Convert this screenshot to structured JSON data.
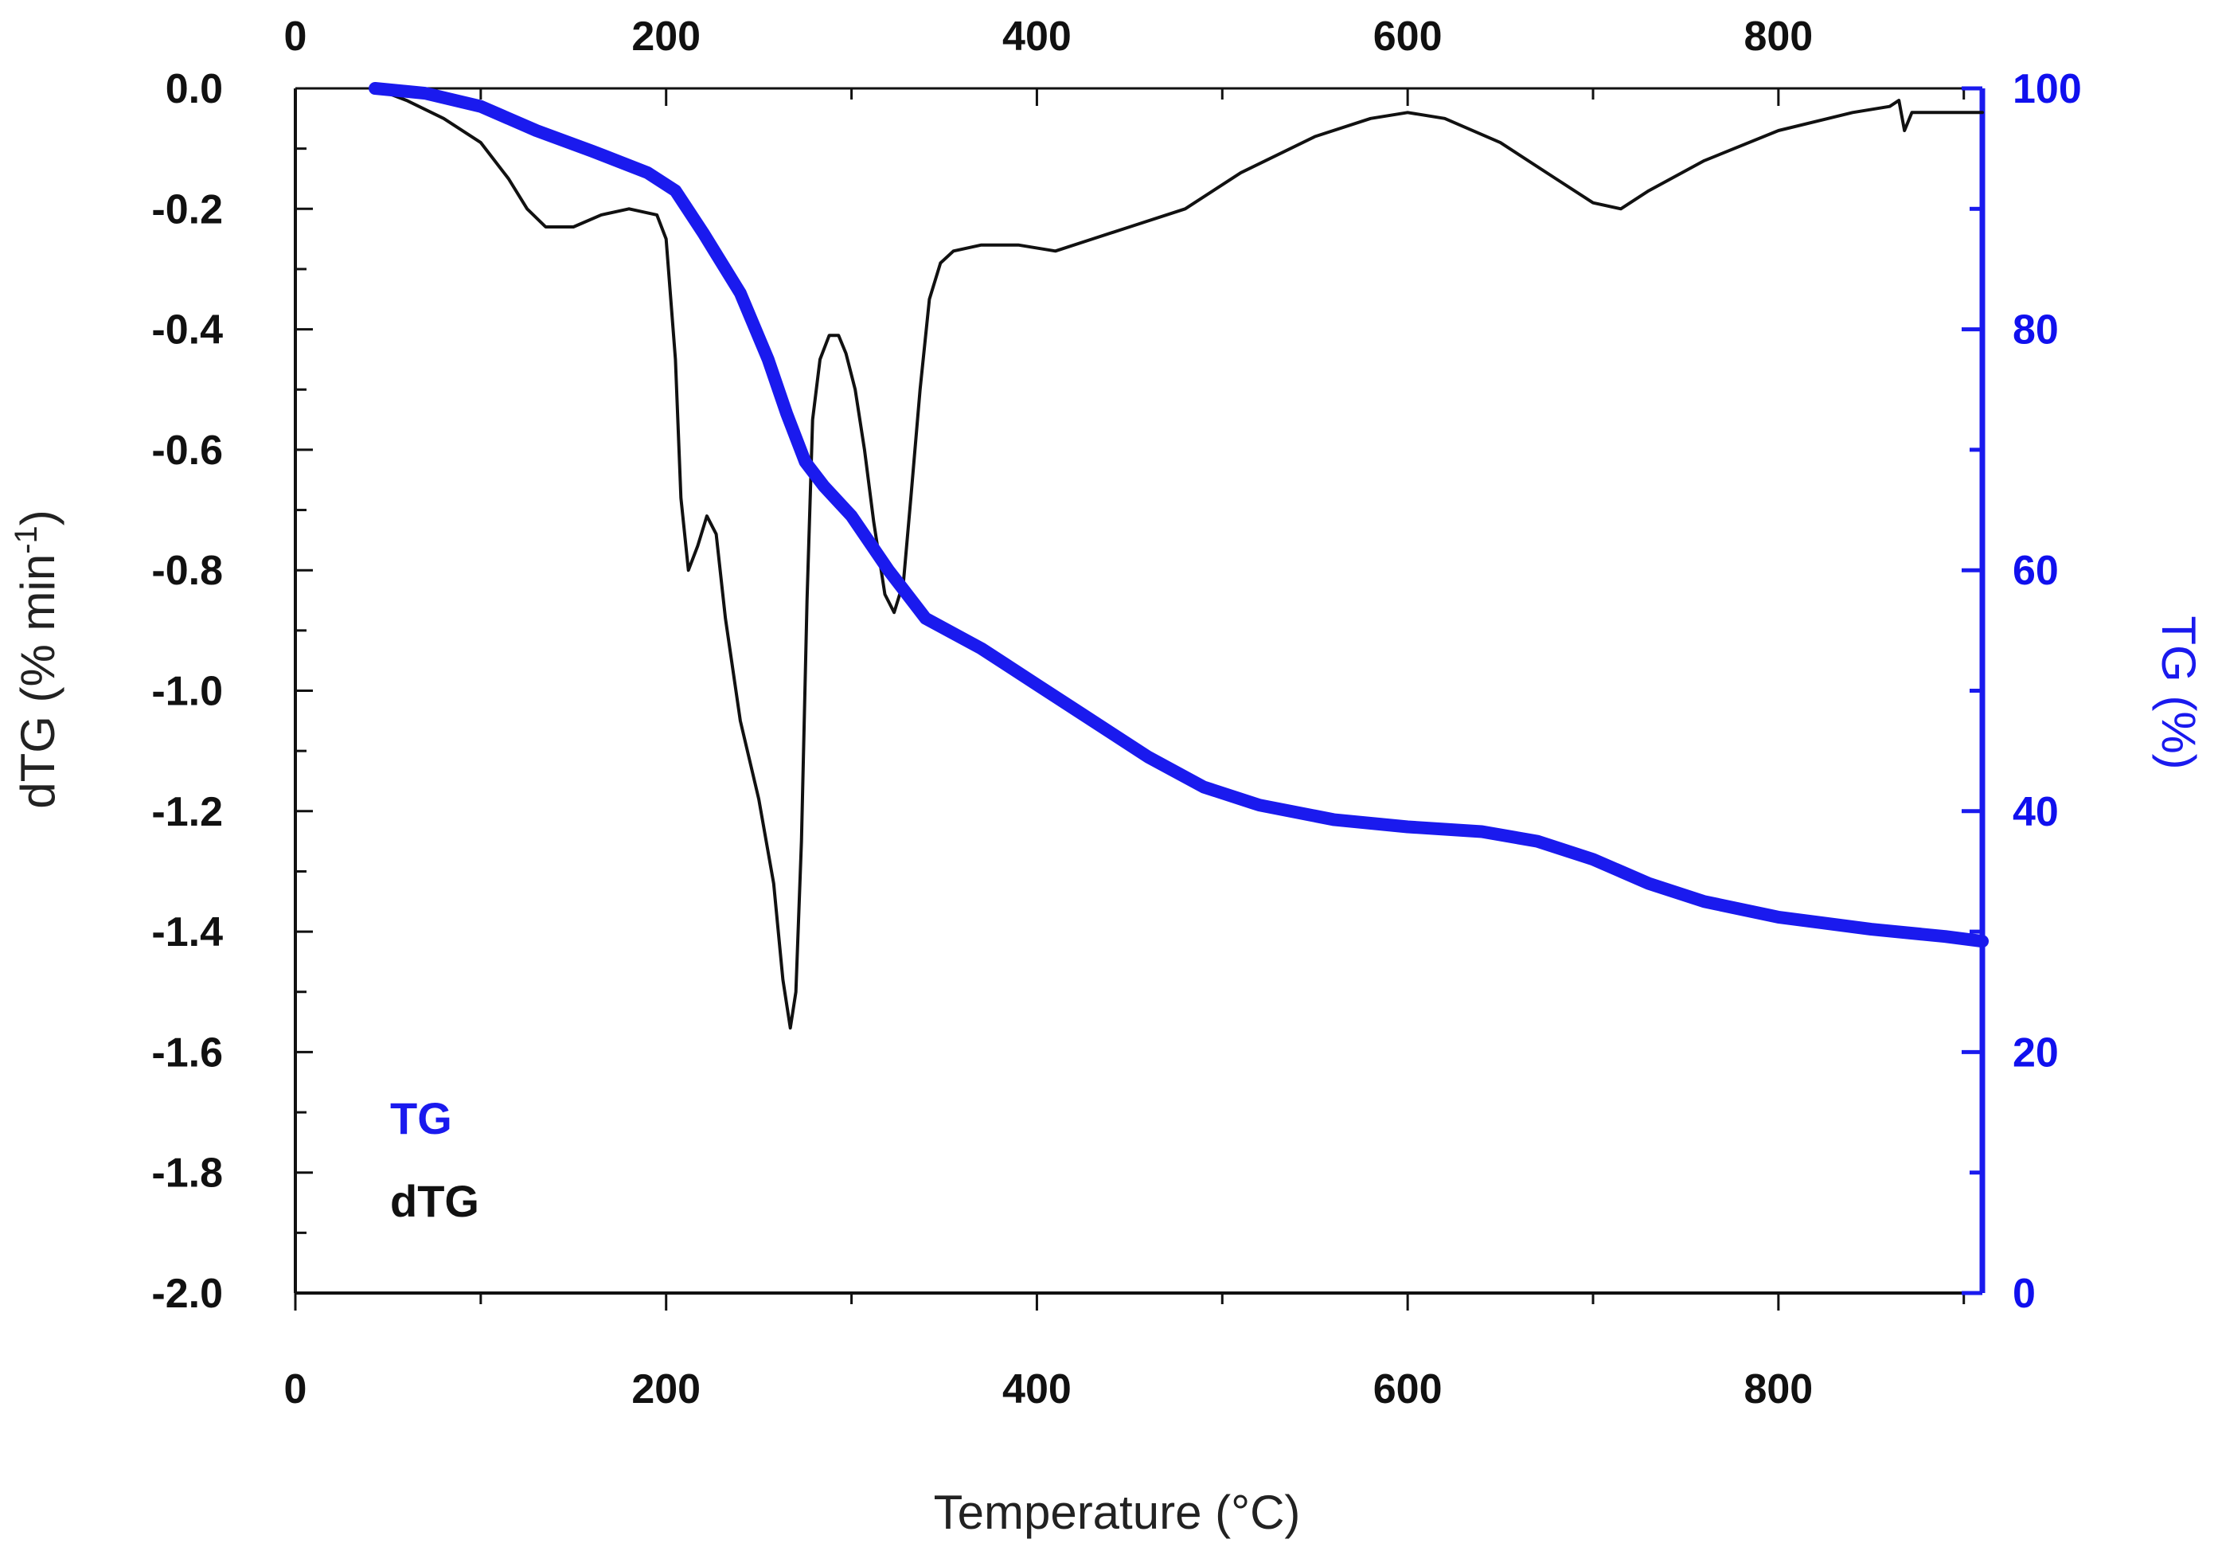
{
  "chart_data": {
    "type": "line",
    "xlabel": "Temperature (°C)",
    "ylabel_left_prefix": "dTG (% min",
    "ylabel_left_sup": "-1",
    "ylabel_left_suffix": ")",
    "ylabel_right": "TG (%)",
    "xlim": [
      0,
      910
    ],
    "ylim_left": [
      -2.0,
      0.0
    ],
    "ylim_right": [
      0,
      100
    ],
    "x_ticks": [
      {
        "value": 0,
        "label": "0"
      },
      {
        "value": 200,
        "label": "200"
      },
      {
        "value": 400,
        "label": "400"
      },
      {
        "value": 600,
        "label": "600"
      },
      {
        "value": 800,
        "label": "800"
      }
    ],
    "y_left_ticks": [
      {
        "value": 0.0,
        "label": "0.0"
      },
      {
        "value": -0.2,
        "label": "-0.2"
      },
      {
        "value": -0.4,
        "label": "-0.4"
      },
      {
        "value": -0.6,
        "label": "-0.6"
      },
      {
        "value": -0.8,
        "label": "-0.8"
      },
      {
        "value": -1.0,
        "label": "-1.0"
      },
      {
        "value": -1.2,
        "label": "-1.2"
      },
      {
        "value": -1.4,
        "label": "-1.4"
      },
      {
        "value": -1.6,
        "label": "-1.6"
      },
      {
        "value": -1.8,
        "label": "-1.8"
      },
      {
        "value": -2.0,
        "label": "-2.0"
      }
    ],
    "y_right_ticks": [
      {
        "value": 0,
        "label": "0"
      },
      {
        "value": 20,
        "label": "20"
      },
      {
        "value": 40,
        "label": "40"
      },
      {
        "value": 60,
        "label": "60"
      },
      {
        "value": 80,
        "label": "80"
      },
      {
        "value": 100,
        "label": "100"
      }
    ],
    "legend": [
      {
        "name": "TG",
        "color": "#1a1aee"
      },
      {
        "name": "dTG",
        "color": "#111111"
      }
    ],
    "series": [
      {
        "name": "dTG",
        "axis": "left",
        "color": "#111111",
        "x": [
          43,
          60,
          80,
          100,
          115,
          125,
          135,
          150,
          165,
          180,
          195,
          200,
          205,
          208,
          212,
          217,
          222,
          227,
          232,
          240,
          250,
          258,
          263,
          267,
          270,
          273,
          276,
          279,
          283,
          288,
          293,
          297,
          302,
          307,
          312,
          318,
          323,
          328,
          332,
          337,
          342,
          348,
          355,
          370,
          390,
          410,
          430,
          450,
          480,
          510,
          550,
          580,
          600,
          620,
          650,
          680,
          700,
          715,
          730,
          760,
          800,
          840,
          860,
          865,
          868,
          872,
          880,
          910
        ],
        "y": [
          0.0,
          -0.02,
          -0.05,
          -0.09,
          -0.15,
          -0.2,
          -0.23,
          -0.23,
          -0.21,
          -0.2,
          -0.21,
          -0.25,
          -0.45,
          -0.68,
          -0.8,
          -0.76,
          -0.71,
          -0.74,
          -0.88,
          -1.05,
          -1.18,
          -1.32,
          -1.48,
          -1.56,
          -1.5,
          -1.25,
          -0.85,
          -0.55,
          -0.45,
          -0.41,
          -0.41,
          -0.44,
          -0.5,
          -0.6,
          -0.72,
          -0.84,
          -0.87,
          -0.82,
          -0.68,
          -0.5,
          -0.35,
          -0.29,
          -0.27,
          -0.26,
          -0.26,
          -0.27,
          -0.25,
          -0.23,
          -0.2,
          -0.14,
          -0.08,
          -0.05,
          -0.04,
          -0.05,
          -0.09,
          -0.15,
          -0.19,
          -0.2,
          -0.17,
          -0.12,
          -0.07,
          -0.04,
          -0.03,
          -0.02,
          -0.07,
          -0.04,
          -0.04,
          -0.04
        ]
      },
      {
        "name": "TG",
        "axis": "right",
        "color": "#1a1aee",
        "x": [
          43,
          70,
          100,
          130,
          160,
          190,
          205,
          220,
          240,
          255,
          265,
          275,
          285,
          300,
          320,
          340,
          370,
          400,
          430,
          460,
          490,
          520,
          560,
          600,
          640,
          670,
          700,
          730,
          760,
          800,
          850,
          890,
          910
        ],
        "y": [
          100,
          99.6,
          98.5,
          96.5,
          94.8,
          93,
          91.5,
          88,
          83,
          77.5,
          73,
          69,
          67,
          64.5,
          60,
          56,
          53.5,
          50.5,
          47.5,
          44.5,
          42,
          40.5,
          39.3,
          38.7,
          38.3,
          37.5,
          36,
          34,
          32.5,
          31.2,
          30.2,
          29.6,
          29.2
        ]
      }
    ]
  }
}
